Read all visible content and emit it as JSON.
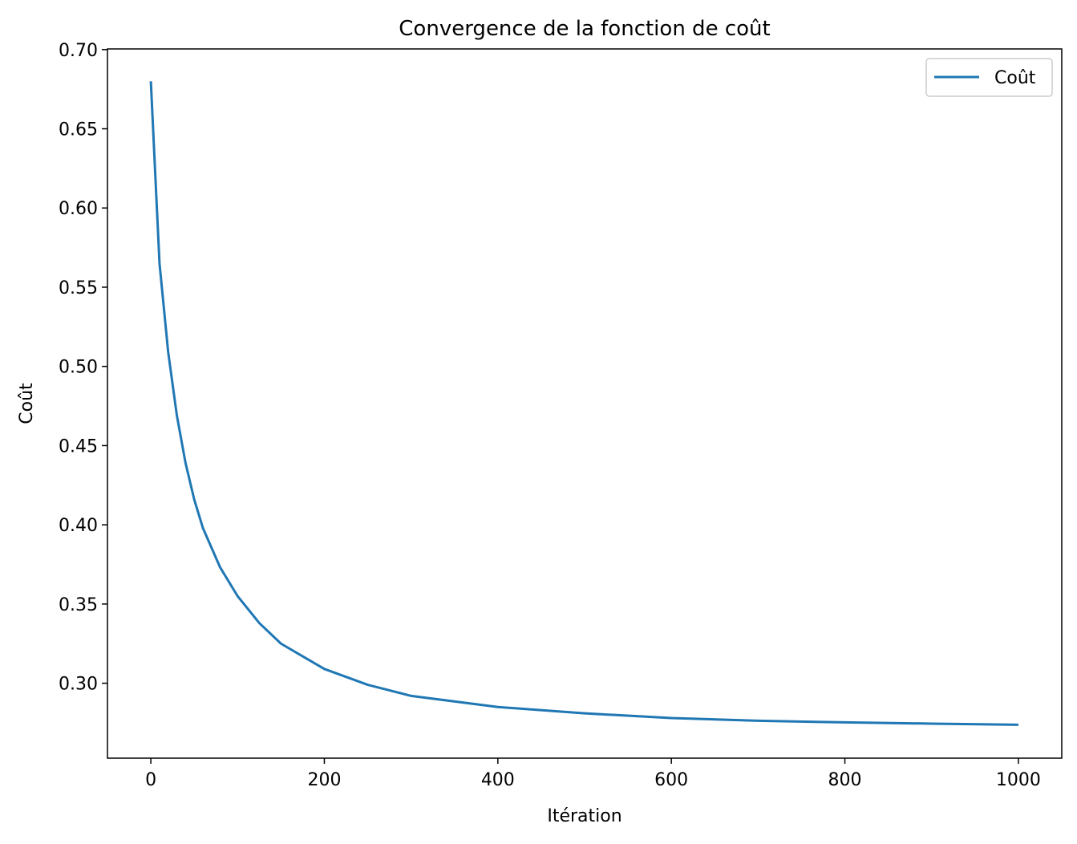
{
  "chart_data": {
    "type": "line",
    "title": "Convergence de la fonction de coût",
    "x_label": "Itération",
    "y_label": "Coût",
    "x": [
      0,
      10,
      20,
      30,
      40,
      50,
      60,
      80,
      100,
      125,
      150,
      200,
      250,
      300,
      400,
      500,
      600,
      700,
      800,
      900,
      1000
    ],
    "series": [
      {
        "name": "Coût",
        "color": "#1f77b4",
        "values": [
          0.68,
          0.565,
          0.509,
          0.469,
          0.439,
          0.416,
          0.398,
          0.373,
          0.355,
          0.338,
          0.325,
          0.309,
          0.299,
          0.292,
          0.285,
          0.281,
          0.278,
          0.2763,
          0.2753,
          0.2745,
          0.2738
        ]
      }
    ],
    "xlim": [
      -50,
      1050
    ],
    "ylim": [
      0.2527,
      0.7004
    ],
    "xticks": [
      0,
      200,
      400,
      600,
      800,
      1000
    ],
    "yticks": [
      {
        "value": 0.3,
        "label": "0.30"
      },
      {
        "value": 0.35,
        "label": "0.35"
      },
      {
        "value": 0.4,
        "label": "0.40"
      },
      {
        "value": 0.45,
        "label": "0.45"
      },
      {
        "value": 0.5,
        "label": "0.50"
      },
      {
        "value": 0.55,
        "label": "0.55"
      },
      {
        "value": 0.6,
        "label": "0.60"
      },
      {
        "value": 0.65,
        "label": "0.65"
      },
      {
        "value": 0.7,
        "label": "0.70"
      }
    ],
    "grid": false,
    "legend": "upper right"
  }
}
